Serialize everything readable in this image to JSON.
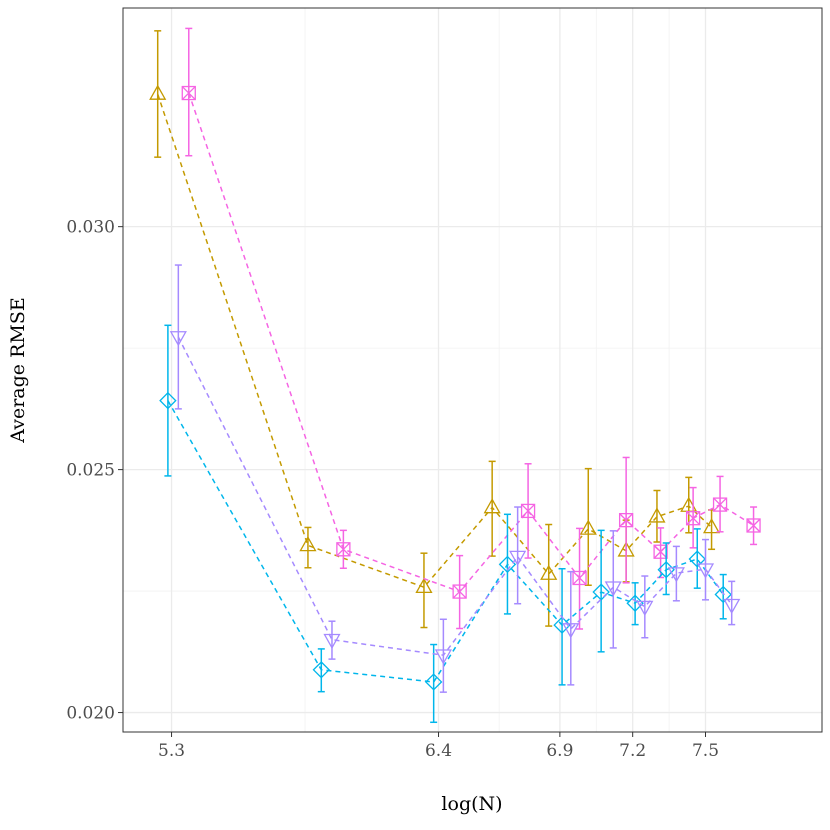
{
  "chart_data": {
    "type": "line",
    "title": "",
    "xlabel": "log(N)",
    "ylabel": "Average RMSE",
    "xlim": [
      5.1,
      7.98
    ],
    "ylim": [
      0.0196,
      0.0345
    ],
    "x_ticks": [
      {
        "value": 5.3,
        "label": "5.3"
      },
      {
        "value": 6.4,
        "label": "6.4"
      },
      {
        "value": 6.9,
        "label": "6.9"
      },
      {
        "value": 7.2,
        "label": "7.2"
      },
      {
        "value": 7.5,
        "label": "7.5"
      }
    ],
    "y_ticks": [
      {
        "value": 0.02,
        "label": "0.020"
      },
      {
        "value": 0.025,
        "label": "0.025"
      },
      {
        "value": 0.03,
        "label": "0.030"
      }
    ],
    "grid": true,
    "legend": "none",
    "series": [
      {
        "name": "gold-triangle",
        "color": "#C49A00",
        "marker": "triangle-up",
        "points": [
          {
            "x": 5.243,
            "y": 0.03273,
            "lo": 0.03143,
            "hi": 0.03403
          },
          {
            "x": 5.862,
            "y": 0.02344,
            "lo": 0.02298,
            "hi": 0.02381
          },
          {
            "x": 6.34,
            "y": 0.02258,
            "lo": 0.02175,
            "hi": 0.02328
          },
          {
            "x": 6.621,
            "y": 0.02422,
            "lo": 0.02322,
            "hi": 0.02517
          },
          {
            "x": 6.854,
            "y": 0.02285,
            "lo": 0.02178,
            "hi": 0.02387
          },
          {
            "x": 7.017,
            "y": 0.02378,
            "lo": 0.02262,
            "hi": 0.02502
          },
          {
            "x": 7.173,
            "y": 0.02333,
            "lo": 0.02269,
            "hi": 0.02396
          },
          {
            "x": 7.3,
            "y": 0.02403,
            "lo": 0.02351,
            "hi": 0.02457
          },
          {
            "x": 7.431,
            "y": 0.02425,
            "lo": 0.0237,
            "hi": 0.02484
          },
          {
            "x": 7.525,
            "y": 0.02381,
            "lo": 0.02336,
            "hi": 0.02417
          }
        ]
      },
      {
        "name": "pink-square",
        "color": "#F564E3",
        "marker": "square-x",
        "points": [
          {
            "x": 5.371,
            "y": 0.03275,
            "lo": 0.03146,
            "hi": 0.03408
          },
          {
            "x": 6.008,
            "y": 0.02336,
            "lo": 0.02297,
            "hi": 0.02375
          },
          {
            "x": 6.487,
            "y": 0.02249,
            "lo": 0.02173,
            "hi": 0.02323
          },
          {
            "x": 6.769,
            "y": 0.02415,
            "lo": 0.02318,
            "hi": 0.02512
          },
          {
            "x": 6.981,
            "y": 0.02277,
            "lo": 0.02172,
            "hi": 0.02379
          },
          {
            "x": 7.173,
            "y": 0.02396,
            "lo": 0.02267,
            "hi": 0.02525
          },
          {
            "x": 7.315,
            "y": 0.02331,
            "lo": 0.02278,
            "hi": 0.0238
          },
          {
            "x": 7.449,
            "y": 0.024,
            "lo": 0.02339,
            "hi": 0.02463
          },
          {
            "x": 7.56,
            "y": 0.02428,
            "lo": 0.02372,
            "hi": 0.02486
          },
          {
            "x": 7.698,
            "y": 0.02385,
            "lo": 0.02346,
            "hi": 0.02423
          }
        ]
      },
      {
        "name": "cyan-diamond",
        "color": "#00B6EB",
        "marker": "diamond",
        "points": [
          {
            "x": 5.285,
            "y": 0.02642,
            "lo": 0.02487,
            "hi": 0.02797
          },
          {
            "x": 5.917,
            "y": 0.02088,
            "lo": 0.02043,
            "hi": 0.02131
          },
          {
            "x": 6.38,
            "y": 0.02063,
            "lo": 0.0198,
            "hi": 0.0214
          },
          {
            "x": 6.684,
            "y": 0.02305,
            "lo": 0.02203,
            "hi": 0.02408
          },
          {
            "x": 6.909,
            "y": 0.0218,
            "lo": 0.02057,
            "hi": 0.02296
          },
          {
            "x": 7.07,
            "y": 0.02248,
            "lo": 0.02125,
            "hi": 0.02375
          },
          {
            "x": 7.21,
            "y": 0.02225,
            "lo": 0.02181,
            "hi": 0.02267
          },
          {
            "x": 7.338,
            "y": 0.02294,
            "lo": 0.02243,
            "hi": 0.02349
          },
          {
            "x": 7.466,
            "y": 0.02316,
            "lo": 0.02256,
            "hi": 0.02378
          },
          {
            "x": 7.573,
            "y": 0.02243,
            "lo": 0.02193,
            "hi": 0.02284
          }
        ]
      },
      {
        "name": "purple-triangle-down",
        "color": "#A58AFF",
        "marker": "triangle-down",
        "points": [
          {
            "x": 5.328,
            "y": 0.02773,
            "lo": 0.02625,
            "hi": 0.02921
          },
          {
            "x": 5.961,
            "y": 0.0215,
            "lo": 0.0211,
            "hi": 0.02188
          },
          {
            "x": 6.42,
            "y": 0.02118,
            "lo": 0.02042,
            "hi": 0.02192
          },
          {
            "x": 6.726,
            "y": 0.02321,
            "lo": 0.02224,
            "hi": 0.02423
          },
          {
            "x": 6.945,
            "y": 0.02172,
            "lo": 0.02057,
            "hi": 0.0229
          },
          {
            "x": 7.12,
            "y": 0.02258,
            "lo": 0.02133,
            "hi": 0.02374
          },
          {
            "x": 7.25,
            "y": 0.02218,
            "lo": 0.02154,
            "hi": 0.02281
          },
          {
            "x": 7.38,
            "y": 0.02287,
            "lo": 0.0223,
            "hi": 0.02342
          },
          {
            "x": 7.5,
            "y": 0.02295,
            "lo": 0.02232,
            "hi": 0.02356
          },
          {
            "x": 7.608,
            "y": 0.02222,
            "lo": 0.02181,
            "hi": 0.0227
          }
        ]
      }
    ]
  }
}
